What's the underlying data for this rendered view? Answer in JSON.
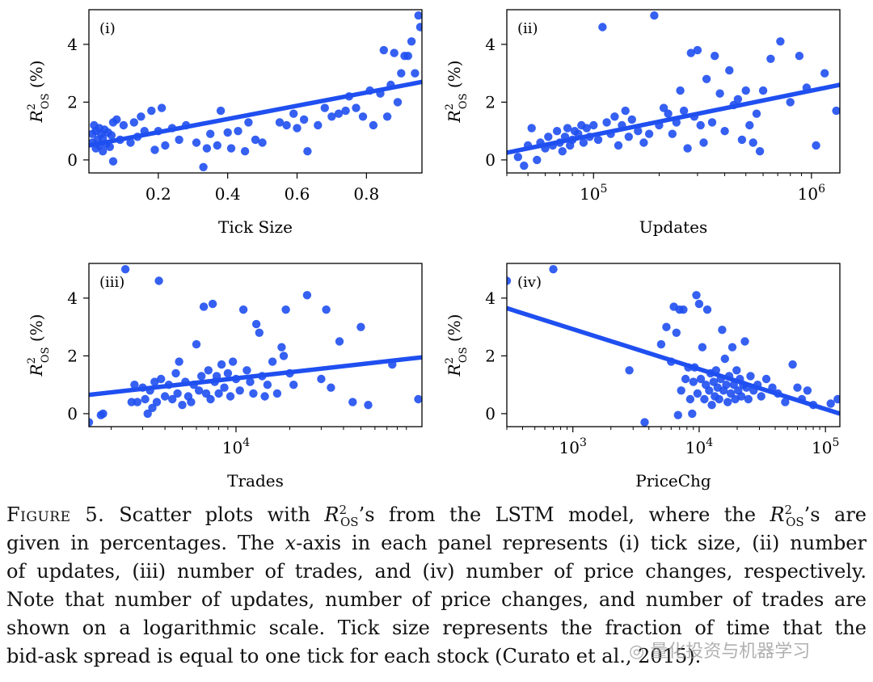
{
  "chart_data": [
    {
      "type": "scatter",
      "panel_label": "(i)",
      "xlabel": "Tick Size",
      "ylabel": "R²OS (%)",
      "xscale": "linear",
      "xlim": [
        0.0,
        0.96
      ],
      "ylim": [
        -0.45,
        5.2
      ],
      "xticks": [
        0.2,
        0.4,
        0.6,
        0.8
      ],
      "xtick_labels": [
        "0.2",
        "0.4",
        "0.6",
        "0.8"
      ],
      "yticks": [
        0,
        2,
        4
      ],
      "ytick_labels": [
        "0",
        "2",
        "4"
      ],
      "points": [
        [
          0.01,
          0.9
        ],
        [
          0.01,
          0.6
        ],
        [
          0.015,
          1.2
        ],
        [
          0.02,
          0.4
        ],
        [
          0.02,
          1.0
        ],
        [
          0.025,
          0.7
        ],
        [
          0.03,
          1.1
        ],
        [
          0.03,
          0.5
        ],
        [
          0.035,
          0.9
        ],
        [
          0.04,
          0.3
        ],
        [
          0.04,
          0.75
        ],
        [
          0.045,
          1.05
        ],
        [
          0.05,
          0.55
        ],
        [
          0.055,
          0.95
        ],
        [
          0.06,
          0.45
        ],
        [
          0.065,
          0.85
        ],
        [
          0.07,
          -0.05
        ],
        [
          0.07,
          1.3
        ],
        [
          0.08,
          1.4
        ],
        [
          0.09,
          0.7
        ],
        [
          0.1,
          1.2
        ],
        [
          0.12,
          0.6
        ],
        [
          0.13,
          1.3
        ],
        [
          0.14,
          0.8
        ],
        [
          0.15,
          1.5
        ],
        [
          0.16,
          1.0
        ],
        [
          0.18,
          1.7
        ],
        [
          0.19,
          0.35
        ],
        [
          0.2,
          1.0
        ],
        [
          0.21,
          1.8
        ],
        [
          0.22,
          0.5
        ],
        [
          0.24,
          1.1
        ],
        [
          0.26,
          0.7
        ],
        [
          0.28,
          1.2
        ],
        [
          0.31,
          0.6
        ],
        [
          0.33,
          -0.25
        ],
        [
          0.34,
          0.4
        ],
        [
          0.35,
          0.9
        ],
        [
          0.37,
          0.5
        ],
        [
          0.38,
          1.7
        ],
        [
          0.4,
          0.95
        ],
        [
          0.41,
          0.4
        ],
        [
          0.43,
          1.0
        ],
        [
          0.45,
          0.3
        ],
        [
          0.46,
          1.3
        ],
        [
          0.48,
          0.7
        ],
        [
          0.5,
          0.6
        ],
        [
          0.55,
          1.3
        ],
        [
          0.57,
          1.2
        ],
        [
          0.59,
          1.6
        ],
        [
          0.6,
          1.1
        ],
        [
          0.62,
          1.4
        ],
        [
          0.63,
          0.3
        ],
        [
          0.66,
          1.2
        ],
        [
          0.68,
          1.8
        ],
        [
          0.7,
          1.5
        ],
        [
          0.72,
          1.6
        ],
        [
          0.74,
          1.7
        ],
        [
          0.75,
          2.2
        ],
        [
          0.77,
          1.8
        ],
        [
          0.79,
          1.5
        ],
        [
          0.81,
          2.4
        ],
        [
          0.82,
          1.2
        ],
        [
          0.84,
          2.3
        ],
        [
          0.85,
          3.8
        ],
        [
          0.86,
          1.5
        ],
        [
          0.87,
          2.6
        ],
        [
          0.88,
          3.7
        ],
        [
          0.89,
          2.0
        ],
        [
          0.9,
          3.0
        ],
        [
          0.91,
          3.6
        ],
        [
          0.92,
          3.6
        ],
        [
          0.93,
          4.1
        ],
        [
          0.94,
          3.0
        ],
        [
          0.95,
          5.0
        ],
        [
          0.955,
          4.6
        ]
      ],
      "fit_line": {
        "x": [
          0.0,
          0.96
        ],
        "y": [
          0.5,
          2.7
        ]
      }
    },
    {
      "type": "scatter",
      "panel_label": "(ii)",
      "xlabel": "Updates",
      "ylabel": "R²OS (%)",
      "xscale": "log",
      "xlim": [
        40000,
        1350000
      ],
      "ylim": [
        -0.45,
        5.2
      ],
      "xticks": [
        100000,
        1000000
      ],
      "xtick_labels": [
        "10^5",
        "10^6"
      ],
      "yticks": [
        0,
        2,
        4
      ],
      "ytick_labels": [
        "0",
        "2",
        "4"
      ],
      "points": [
        [
          45000,
          0.1
        ],
        [
          48000,
          -0.2
        ],
        [
          50000,
          0.5
        ],
        [
          52000,
          1.1
        ],
        [
          55000,
          0.0
        ],
        [
          57000,
          0.6
        ],
        [
          60000,
          0.4
        ],
        [
          62000,
          0.8
        ],
        [
          65000,
          0.5
        ],
        [
          68000,
          1.0
        ],
        [
          70000,
          0.6
        ],
        [
          72000,
          0.3
        ],
        [
          74000,
          0.8
        ],
        [
          76000,
          1.1
        ],
        [
          78000,
          0.5
        ],
        [
          80000,
          0.7
        ],
        [
          82000,
          1.0
        ],
        [
          85000,
          0.9
        ],
        [
          88000,
          1.2
        ],
        [
          90000,
          0.6
        ],
        [
          93000,
          1.1
        ],
        [
          96000,
          0.8
        ],
        [
          100000,
          1.2
        ],
        [
          105000,
          0.7
        ],
        [
          110000,
          4.6
        ],
        [
          115000,
          1.3
        ],
        [
          120000,
          0.9
        ],
        [
          125000,
          1.5
        ],
        [
          130000,
          0.5
        ],
        [
          135000,
          1.2
        ],
        [
          140000,
          1.7
        ],
        [
          145000,
          0.8
        ],
        [
          150000,
          1.4
        ],
        [
          160000,
          1.0
        ],
        [
          170000,
          0.6
        ],
        [
          180000,
          0.9
        ],
        [
          190000,
          5.0
        ],
        [
          200000,
          1.2
        ],
        [
          210000,
          1.8
        ],
        [
          220000,
          1.6
        ],
        [
          230000,
          0.9
        ],
        [
          240000,
          1.3
        ],
        [
          250000,
          2.4
        ],
        [
          260000,
          1.7
        ],
        [
          270000,
          0.4
        ],
        [
          280000,
          3.7
        ],
        [
          290000,
          1.5
        ],
        [
          300000,
          3.8
        ],
        [
          310000,
          1.2
        ],
        [
          320000,
          0.6
        ],
        [
          330000,
          2.8
        ],
        [
          350000,
          1.3
        ],
        [
          360000,
          3.6
        ],
        [
          380000,
          2.3
        ],
        [
          400000,
          1.0
        ],
        [
          420000,
          3.1
        ],
        [
          440000,
          1.9
        ],
        [
          460000,
          2.1
        ],
        [
          480000,
          0.7
        ],
        [
          500000,
          2.4
        ],
        [
          520000,
          1.2
        ],
        [
          540000,
          0.6
        ],
        [
          560000,
          1.6
        ],
        [
          580000,
          0.3
        ],
        [
          600000,
          2.4
        ],
        [
          650000,
          3.5
        ],
        [
          720000,
          4.1
        ],
        [
          800000,
          2.0
        ],
        [
          880000,
          3.6
        ],
        [
          950000,
          2.5
        ],
        [
          1050000,
          0.5
        ],
        [
          1150000,
          3.0
        ],
        [
          1300000,
          1.7
        ]
      ],
      "fit_line": {
        "x": [
          40000,
          1350000
        ],
        "y": [
          0.25,
          2.6
        ]
      }
    },
    {
      "type": "scatter",
      "panel_label": "(iii)",
      "xlabel": "Trades",
      "ylabel": "R²OS (%)",
      "xscale": "log",
      "xlim": [
        1500,
        110000
      ],
      "ylim": [
        -0.45,
        5.2
      ],
      "xticks": [
        10000
      ],
      "xtick_labels": [
        "10^4"
      ],
      "yticks": [
        0,
        2,
        4
      ],
      "ytick_labels": [
        "0",
        "2",
        "4"
      ],
      "points": [
        [
          1500,
          -0.3
        ],
        [
          1750,
          -0.05
        ],
        [
          1800,
          0.0
        ],
        [
          2400,
          5.0
        ],
        [
          2600,
          0.4
        ],
        [
          2700,
          1.0
        ],
        [
          2800,
          0.4
        ],
        [
          3000,
          0.9
        ],
        [
          3100,
          0.5
        ],
        [
          3200,
          0.0
        ],
        [
          3300,
          0.8
        ],
        [
          3400,
          0.2
        ],
        [
          3500,
          1.1
        ],
        [
          3600,
          0.4
        ],
        [
          3700,
          4.6
        ],
        [
          3800,
          1.2
        ],
        [
          4000,
          0.6
        ],
        [
          4200,
          1.0
        ],
        [
          4400,
          0.5
        ],
        [
          4600,
          1.4
        ],
        [
          4700,
          0.7
        ],
        [
          4800,
          1.8
        ],
        [
          5000,
          0.3
        ],
        [
          5200,
          1.1
        ],
        [
          5400,
          0.6
        ],
        [
          5600,
          0.4
        ],
        [
          5800,
          1.0
        ],
        [
          6000,
          2.4
        ],
        [
          6200,
          0.8
        ],
        [
          6400,
          1.3
        ],
        [
          6600,
          3.7
        ],
        [
          6800,
          0.7
        ],
        [
          7000,
          1.5
        ],
        [
          7200,
          0.5
        ],
        [
          7400,
          3.8
        ],
        [
          7600,
          1.1
        ],
        [
          7800,
          1.3
        ],
        [
          8000,
          0.7
        ],
        [
          8300,
          1.7
        ],
        [
          8600,
          0.9
        ],
        [
          9000,
          1.4
        ],
        [
          9300,
          0.6
        ],
        [
          9600,
          1.8
        ],
        [
          10000,
          1.2
        ],
        [
          10500,
          0.8
        ],
        [
          11000,
          3.6
        ],
        [
          11500,
          1.5
        ],
        [
          12000,
          1.1
        ],
        [
          12500,
          0.7
        ],
        [
          13000,
          3.1
        ],
        [
          13500,
          2.8
        ],
        [
          14000,
          1.3
        ],
        [
          14500,
          0.6
        ],
        [
          15000,
          1.0
        ],
        [
          16000,
          1.8
        ],
        [
          17000,
          0.7
        ],
        [
          18000,
          2.3
        ],
        [
          18500,
          2.0
        ],
        [
          19000,
          3.6
        ],
        [
          20000,
          1.4
        ],
        [
          21000,
          1.0
        ],
        [
          25000,
          4.1
        ],
        [
          30000,
          1.2
        ],
        [
          32000,
          3.6
        ],
        [
          34000,
          0.9
        ],
        [
          38000,
          2.5
        ],
        [
          45000,
          0.4
        ],
        [
          50000,
          3.0
        ],
        [
          55000,
          0.3
        ],
        [
          75000,
          1.7
        ],
        [
          105000,
          0.5
        ]
      ],
      "fit_line": {
        "x": [
          1500,
          110000
        ],
        "y": [
          0.65,
          1.95
        ]
      }
    },
    {
      "type": "scatter",
      "panel_label": "(iv)",
      "xlabel": "PriceChg",
      "ylabel": "R²OS (%)",
      "xscale": "log",
      "xlim": [
        300,
        130000
      ],
      "ylim": [
        -0.45,
        5.2
      ],
      "xticks": [
        1000,
        10000,
        100000
      ],
      "xtick_labels": [
        "10^3",
        "10^4",
        "10^5"
      ],
      "yticks": [
        0,
        2,
        4
      ],
      "ytick_labels": [
        "0",
        "2",
        "4"
      ],
      "points": [
        [
          300,
          4.6
        ],
        [
          700,
          5.0
        ],
        [
          2800,
          1.5
        ],
        [
          3700,
          -0.3
        ],
        [
          5000,
          2.4
        ],
        [
          5500,
          3.0
        ],
        [
          6000,
          1.8
        ],
        [
          6300,
          3.7
        ],
        [
          6600,
          2.8
        ],
        [
          6800,
          -0.05
        ],
        [
          7000,
          3.6
        ],
        [
          7200,
          0.8
        ],
        [
          7500,
          3.6
        ],
        [
          7800,
          1.2
        ],
        [
          8200,
          1.6
        ],
        [
          8500,
          0.5
        ],
        [
          8800,
          0.0
        ],
        [
          9000,
          1.1
        ],
        [
          9200,
          1.6
        ],
        [
          9500,
          4.1
        ],
        [
          9700,
          0.7
        ],
        [
          10000,
          3.8
        ],
        [
          10300,
          1.2
        ],
        [
          10600,
          2.3
        ],
        [
          11000,
          0.5
        ],
        [
          11300,
          1.0
        ],
        [
          11600,
          3.6
        ],
        [
          12000,
          0.8
        ],
        [
          12300,
          1.4
        ],
        [
          12600,
          0.3
        ],
        [
          13000,
          1.1
        ],
        [
          13300,
          0.6
        ],
        [
          13600,
          1.5
        ],
        [
          14000,
          0.9
        ],
        [
          14400,
          0.5
        ],
        [
          14800,
          1.2
        ],
        [
          15200,
          2.9
        ],
        [
          15600,
          0.8
        ],
        [
          16000,
          1.9
        ],
        [
          16400,
          1.0
        ],
        [
          16800,
          0.4
        ],
        [
          17300,
          1.3
        ],
        [
          17800,
          0.7
        ],
        [
          18300,
          2.3
        ],
        [
          18800,
          1.0
        ],
        [
          19300,
          0.5
        ],
        [
          19800,
          1.5
        ],
        [
          20400,
          0.8
        ],
        [
          21000,
          1.2
        ],
        [
          21600,
          0.6
        ],
        [
          22300,
          1.0
        ],
        [
          23000,
          2.5
        ],
        [
          23700,
          0.9
        ],
        [
          24500,
          0.5
        ],
        [
          25500,
          1.3
        ],
        [
          27000,
          0.8
        ],
        [
          29000,
          1.0
        ],
        [
          31000,
          0.6
        ],
        [
          34000,
          1.2
        ],
        [
          38000,
          0.9
        ],
        [
          42000,
          0.7
        ],
        [
          48000,
          0.4
        ],
        [
          55000,
          1.7
        ],
        [
          60000,
          0.9
        ],
        [
          65000,
          0.5
        ],
        [
          72000,
          0.8
        ],
        [
          80000,
          0.3
        ],
        [
          110000,
          0.35
        ],
        [
          125000,
          0.5
        ]
      ],
      "fit_line": {
        "x": [
          300,
          130000
        ],
        "y": [
          3.65,
          0.0
        ]
      }
    }
  ],
  "caption": {
    "figure_label": "Figure 5.",
    "lines": [
      [
        {
          "t": "Scatter plots with "
        },
        {
          "sym": "R2OS"
        },
        {
          "t": "’s from the LSTM model, where the "
        },
        {
          "sym": "R2OS"
        },
        {
          "t": "’s are"
        }
      ],
      [
        {
          "t": "given in percentages. The "
        },
        {
          "i": "x"
        },
        {
          "t": "-axis in each panel represents (i) tick size, (ii) number"
        }
      ],
      [
        {
          "t": "of updates, (iii) number of trades, and (iv) number of price changes, respectively."
        }
      ],
      [
        {
          "t": "Note that number of updates, number of price changes, and number of trades are"
        }
      ],
      [
        {
          "t": "shown on a logarithmic scale.  Tick size represents the fraction of time that the"
        }
      ],
      [
        {
          "t": "bid-ask spread is equal to one tick for each stock (Curato et al., 2015)."
        }
      ]
    ]
  },
  "watermark": "量化投资与机器学习",
  "colors": {
    "marker": "#1f4ff0",
    "fit_line": "#1f4ff0",
    "axis": "#000000"
  }
}
